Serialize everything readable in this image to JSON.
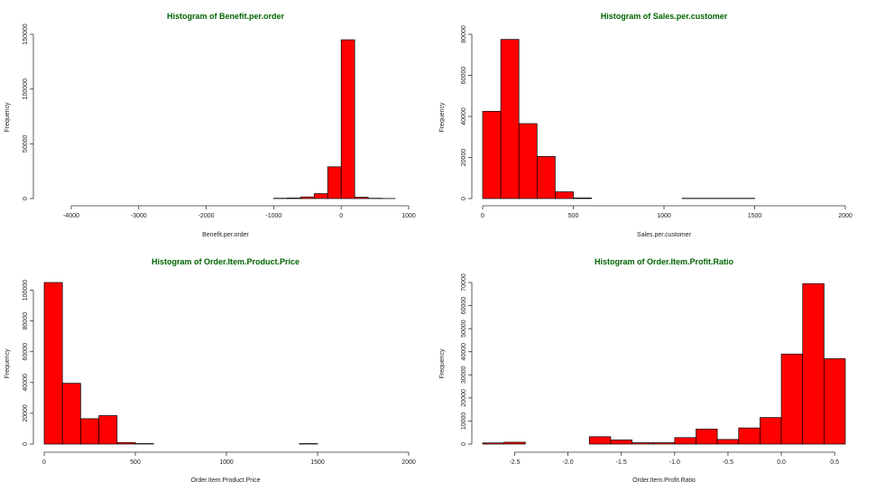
{
  "bar_color": "#ff0000",
  "bar_stroke": "#000000",
  "title_color": "#006400",
  "chart_data": [
    {
      "type": "bar",
      "title": "Histogram of Benefit.per.order",
      "xlabel": "Benefit.per.order",
      "ylabel": "Frequency",
      "xlim": [
        -4400,
        1000
      ],
      "ylim": [
        0,
        150000
      ],
      "xticks": [
        -4000,
        -3000,
        -2000,
        -1000,
        0,
        1000
      ],
      "yticks": [
        0,
        50000,
        100000,
        150000
      ],
      "bin_width": 200,
      "bins": [
        {
          "x0": -4400,
          "x1": -1000,
          "value": 0
        },
        {
          "x0": -1000,
          "x1": -800,
          "value": 300
        },
        {
          "x0": -800,
          "x1": -600,
          "value": 500
        },
        {
          "x0": -600,
          "x1": -400,
          "value": 1500
        },
        {
          "x0": -400,
          "x1": -200,
          "value": 4500
        },
        {
          "x0": -200,
          "x1": 0,
          "value": 29000
        },
        {
          "x0": 0,
          "x1": 200,
          "value": 145000
        },
        {
          "x0": 200,
          "x1": 400,
          "value": 1200
        },
        {
          "x0": 400,
          "x1": 600,
          "value": 300
        },
        {
          "x0": 600,
          "x1": 800,
          "value": 100
        }
      ]
    },
    {
      "type": "bar",
      "title": "Histogram of Sales.per.customer",
      "xlabel": "Sales.per.customer",
      "ylabel": "Frequency",
      "xlim": [
        0,
        2000
      ],
      "ylim": [
        0,
        80000
      ],
      "xticks": [
        0,
        500,
        1000,
        1500,
        2000
      ],
      "yticks": [
        0,
        20000,
        40000,
        60000,
        80000
      ],
      "bin_width": 100,
      "bins": [
        {
          "x0": 0,
          "x1": 100,
          "value": 42500
        },
        {
          "x0": 100,
          "x1": 200,
          "value": 77500
        },
        {
          "x0": 200,
          "x1": 300,
          "value": 36500
        },
        {
          "x0": 300,
          "x1": 400,
          "value": 20500
        },
        {
          "x0": 400,
          "x1": 500,
          "value": 3300
        },
        {
          "x0": 500,
          "x1": 600,
          "value": 300
        },
        {
          "x0": 600,
          "x1": 1100,
          "value": 0
        },
        {
          "x0": 1100,
          "x1": 1500,
          "value": 150
        }
      ]
    },
    {
      "type": "bar",
      "title": "Histogram of Order.Item.Product.Price",
      "xlabel": "Order.Item.Product.Price",
      "ylabel": "Frequency",
      "xlim": [
        0,
        2000
      ],
      "ylim": [
        0,
        105000
      ],
      "xticks": [
        0,
        500,
        1000,
        1500,
        2000
      ],
      "yticks": [
        0,
        20000,
        40000,
        60000,
        80000,
        100000
      ],
      "bin_width": 100,
      "bins": [
        {
          "x0": 0,
          "x1": 100,
          "value": 105000
        },
        {
          "x0": 100,
          "x1": 200,
          "value": 39500
        },
        {
          "x0": 200,
          "x1": 300,
          "value": 16500
        },
        {
          "x0": 300,
          "x1": 400,
          "value": 18500
        },
        {
          "x0": 400,
          "x1": 500,
          "value": 1000
        },
        {
          "x0": 500,
          "x1": 600,
          "value": 300
        },
        {
          "x0": 1400,
          "x1": 1500,
          "value": 300
        }
      ]
    },
    {
      "type": "bar",
      "title": "Histogram of Order.Item.Profit.Ratio",
      "xlabel": "Order.Item.Profit.Ratio",
      "ylabel": "Frequency",
      "xlim": [
        -2.8,
        0.6
      ],
      "ylim": [
        0,
        70000
      ],
      "xticks": [
        -2.5,
        -2.0,
        -1.5,
        -1.0,
        -0.5,
        0.0,
        0.5
      ],
      "xtick_labels": [
        "-2.5",
        "-2.0",
        "-1.5",
        "-1.0",
        "-0.5",
        "0.0",
        "0.5"
      ],
      "yticks": [
        0,
        10000,
        20000,
        30000,
        40000,
        50000,
        60000,
        70000
      ],
      "bin_width": 0.2,
      "bins": [
        {
          "x0": -2.8,
          "x1": -2.6,
          "value": 500
        },
        {
          "x0": -2.6,
          "x1": -2.4,
          "value": 800
        },
        {
          "x0": -2.4,
          "x1": -1.8,
          "value": 0
        },
        {
          "x0": -1.8,
          "x1": -1.6,
          "value": 3200
        },
        {
          "x0": -1.6,
          "x1": -1.4,
          "value": 1800
        },
        {
          "x0": -1.4,
          "x1": -1.2,
          "value": 600
        },
        {
          "x0": -1.2,
          "x1": -1.0,
          "value": 600
        },
        {
          "x0": -1.0,
          "x1": -0.8,
          "value": 2800
        },
        {
          "x0": -0.8,
          "x1": -0.6,
          "value": 6500
        },
        {
          "x0": -0.6,
          "x1": -0.4,
          "value": 2000
        },
        {
          "x0": -0.4,
          "x1": -0.2,
          "value": 7000
        },
        {
          "x0": -0.2,
          "x1": 0.0,
          "value": 11500
        },
        {
          "x0": 0.0,
          "x1": 0.2,
          "value": 39000
        },
        {
          "x0": 0.2,
          "x1": 0.4,
          "value": 69500
        },
        {
          "x0": 0.4,
          "x1": 0.6,
          "value": 37000
        }
      ]
    }
  ]
}
